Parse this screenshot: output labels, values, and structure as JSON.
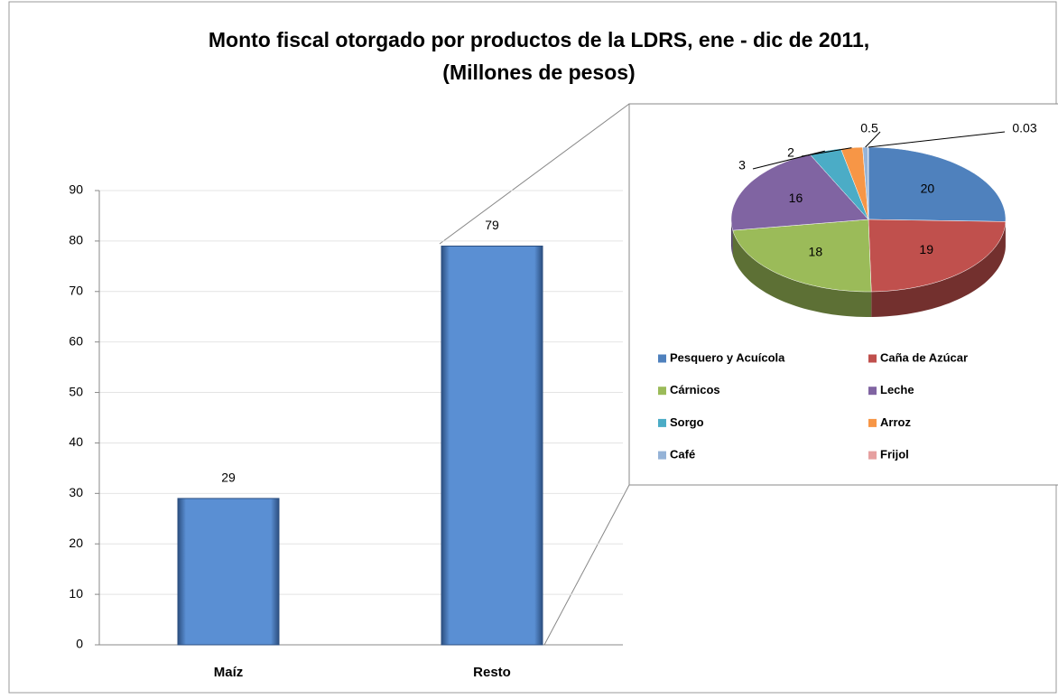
{
  "chart_data": [
    {
      "type": "bar",
      "title": "Monto fiscal otorgado por productos de la LDRS, ene - dic de 2011,",
      "subtitle": "(Millones de pesos)",
      "categories": [
        "Maíz",
        "Resto"
      ],
      "values": [
        29,
        79
      ],
      "color": "#5a8fd3",
      "ylim": [
        0,
        90
      ],
      "yticks": [
        0,
        10,
        20,
        30,
        40,
        50,
        60,
        70,
        80,
        90
      ],
      "grid": true
    },
    {
      "type": "pie",
      "categories": [
        "Pesquero y Acuícola",
        "Caña de Azúcar",
        "Cárnicos",
        "Leche",
        "Sorgo",
        "Arroz",
        "Café",
        "Frijol"
      ],
      "values": [
        20,
        19,
        18,
        16,
        3,
        2,
        0.5,
        0.03
      ],
      "colors": [
        "#4f81bd",
        "#c0504d",
        "#9bbb59",
        "#8064a2",
        "#4bacc6",
        "#f79646",
        "#95b3d7",
        "#e6a0a0"
      ],
      "legend": "bottom"
    }
  ]
}
